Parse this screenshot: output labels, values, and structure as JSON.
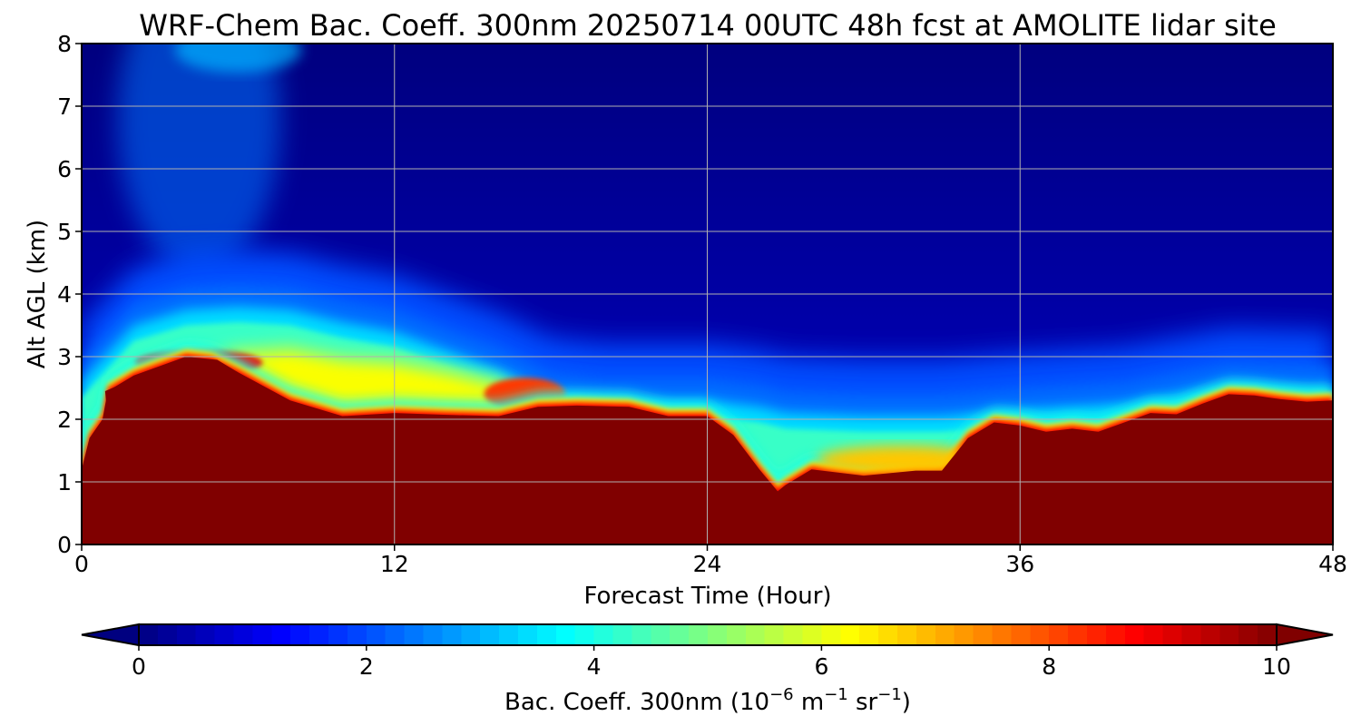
{
  "chart_data": {
    "type": "heatmap",
    "title": "WRF-Chem Bac. Coeff. 300nm  20250714 00UTC 48h fcst at AMOLITE lidar site",
    "xlabel": "Forecast Time (Hour)",
    "ylabel": "Alt AGL (km)",
    "xlim": [
      0,
      48
    ],
    "ylim": [
      0,
      8
    ],
    "x_ticks": [
      0,
      12,
      24,
      36,
      48
    ],
    "y_ticks": [
      0,
      1,
      2,
      3,
      4,
      5,
      6,
      7,
      8
    ],
    "grid": true,
    "colormap": "jet",
    "colorbar": {
      "label_prefix": "Bac. Coeff. 300nm  (10",
      "label_exp1": "−6",
      "label_mid1": " m",
      "label_exp2": "−1",
      "label_mid2": " sr",
      "label_exp3": "−1",
      "label_suffix": ")",
      "range": [
        0,
        10
      ],
      "ticks": [
        0,
        2,
        4,
        6,
        8,
        10
      ],
      "extend": "both",
      "orientation": "horizontal"
    },
    "saturated_layer_top_km": {
      "x": [
        0,
        0.3,
        0.8,
        1,
        2,
        4,
        5,
        6,
        8,
        10,
        12,
        14,
        16,
        17.5,
        19,
        21,
        22.5,
        24,
        25,
        26,
        26.7,
        27,
        28,
        30,
        32,
        33,
        34,
        35,
        36,
        37,
        38,
        39,
        40,
        41,
        42,
        43,
        44,
        45,
        46,
        47,
        48
      ],
      "y": [
        1.2,
        1.7,
        2.0,
        2.45,
        2.7,
        3.0,
        2.95,
        2.75,
        2.3,
        2.05,
        2.1,
        2.07,
        2.05,
        2.2,
        2.22,
        2.2,
        2.05,
        2.05,
        1.75,
        1.2,
        0.85,
        0.95,
        1.2,
        1.1,
        1.18,
        1.18,
        1.7,
        1.95,
        1.9,
        1.8,
        1.85,
        1.8,
        1.95,
        2.1,
        2.08,
        2.25,
        2.4,
        2.38,
        2.32,
        2.28,
        2.3
      ]
    },
    "elevated_layer_km": {
      "x": [
        4,
        6,
        8,
        10,
        12,
        14,
        16,
        17.5
      ],
      "bottom": [
        1.98,
        2.0,
        2.0,
        1.88,
        2.05,
        2.03,
        2.02,
        2.05
      ],
      "top": [
        3.0,
        3.2,
        3.25,
        3.1,
        3.05,
        2.9,
        2.7,
        2.3
      ]
    },
    "mixing_layer_top_km": {
      "x": [
        0,
        2,
        4,
        6,
        8,
        10,
        12,
        14,
        16,
        18,
        20,
        22,
        24,
        26,
        27,
        30,
        33,
        36,
        40,
        44,
        48
      ],
      "y": [
        2.6,
        3.5,
        3.75,
        3.8,
        3.75,
        3.55,
        3.4,
        3.1,
        2.8,
        2.4,
        2.3,
        2.3,
        2.3,
        2.2,
        2.1,
        2.05,
        2.05,
        2.15,
        2.25,
        2.55,
        2.5
      ]
    },
    "free_troposphere_value": 1.2,
    "upper_left_plume": {
      "x_center": 4.5,
      "y_center": 6.8,
      "value": 2.4
    }
  }
}
